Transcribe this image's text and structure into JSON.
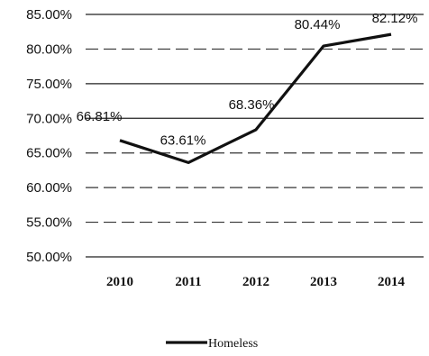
{
  "chart_data": {
    "type": "line",
    "title": "",
    "xlabel": "",
    "ylabel": "",
    "categories": [
      "2010",
      "2011",
      "2012",
      "2013",
      "2014"
    ],
    "series": [
      {
        "name": "Homeless",
        "values": [
          66.81,
          63.61,
          68.36,
          80.44,
          82.12
        ],
        "labels": [
          "66.81%",
          "63.61%",
          "68.36%",
          "80.44%",
          "82.12%"
        ],
        "color": "#111111"
      }
    ],
    "ylim": [
      50,
      85
    ],
    "y_ticks": [
      {
        "value": 85,
        "label": "85.00%"
      },
      {
        "value": 80,
        "label": "80.00%"
      },
      {
        "value": 75,
        "label": "75.00%"
      },
      {
        "value": 70,
        "label": "70.00%"
      },
      {
        "value": 65,
        "label": "65.00%"
      },
      {
        "value": 60,
        "label": "60.00%"
      },
      {
        "value": 55,
        "label": "55.00%"
      },
      {
        "value": 50,
        "label": "50.00%"
      }
    ],
    "grid": true,
    "legend_position": "bottom"
  }
}
